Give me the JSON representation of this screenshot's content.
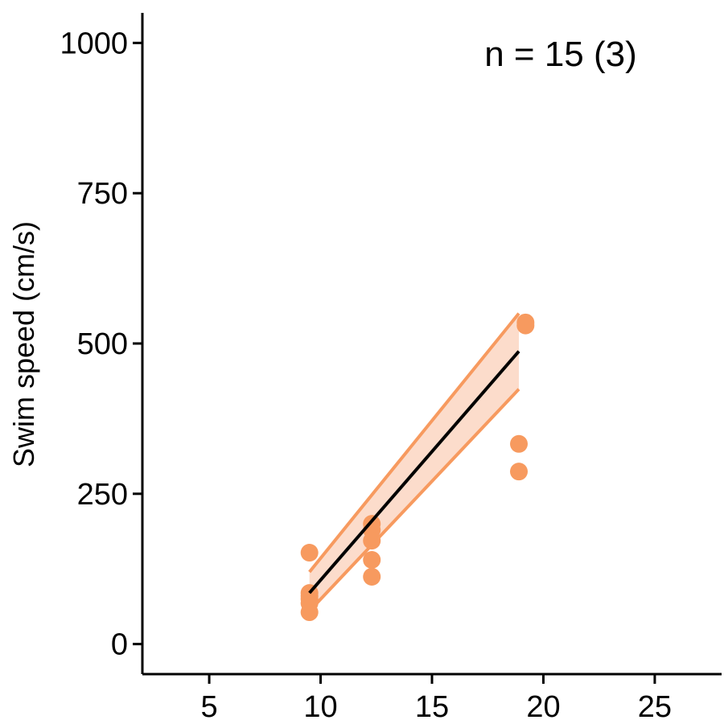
{
  "chart_data": {
    "type": "scatter",
    "title": "",
    "xlabel": "",
    "ylabel": "Swim speed (cm/s)",
    "annotation": "n = 15 (3)",
    "xlim": [
      2,
      28
    ],
    "ylim": [
      -50,
      1050
    ],
    "x_ticks": [
      "5",
      "10",
      "15",
      "20",
      "25"
    ],
    "y_ticks": [
      "0",
      "250",
      "500",
      "750",
      "1000"
    ],
    "grid": false,
    "colors": {
      "points": "#F79A5F",
      "band": "#FCDCCB",
      "band_edge": "#F79A5F",
      "fit_line": "#000000"
    },
    "points": [
      {
        "x": 9.5,
        "y": 152
      },
      {
        "x": 9.5,
        "y": 85
      },
      {
        "x": 9.5,
        "y": 75
      },
      {
        "x": 9.5,
        "y": 68
      },
      {
        "x": 9.5,
        "y": 53
      },
      {
        "x": 12.3,
        "y": 200
      },
      {
        "x": 12.3,
        "y": 190
      },
      {
        "x": 12.3,
        "y": 172
      },
      {
        "x": 12.3,
        "y": 140
      },
      {
        "x": 12.3,
        "y": 112
      },
      {
        "x": 18.9,
        "y": 333
      },
      {
        "x": 18.9,
        "y": 287
      },
      {
        "x": 19.2,
        "y": 535
      },
      {
        "x": 19.2,
        "y": 530
      },
      {
        "x": 9.5,
        "y": 80
      }
    ],
    "fit": {
      "x": [
        9.5,
        18.9
      ],
      "y": [
        85,
        487
      ]
    },
    "confidence_band": {
      "x": [
        9.5,
        18.9
      ],
      "upper": [
        120,
        550
      ],
      "lower": [
        55,
        424
      ]
    }
  }
}
